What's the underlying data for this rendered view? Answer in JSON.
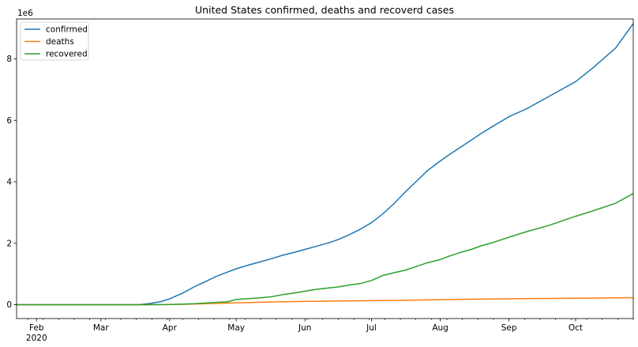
{
  "chart_data": {
    "type": "line",
    "title": "United States confirmed, deaths and recoverd cases",
    "xlabel": "",
    "ylabel": "",
    "y_scale_label": "1e6",
    "xlim_day": [
      0,
      278
    ],
    "ylim": [
      -450000,
      9300000
    ],
    "yticks": [
      0,
      2,
      4,
      6,
      8
    ],
    "x_tick_labels": [
      {
        "label": "Feb",
        "day": 9
      },
      {
        "label": "Mar",
        "day": 38
      },
      {
        "label": "Apr",
        "day": 69
      },
      {
        "label": "May",
        "day": 99
      },
      {
        "label": "Jun",
        "day": 130
      },
      {
        "label": "Jul",
        "day": 160
      },
      {
        "label": "Aug",
        "day": 191
      },
      {
        "label": "Sep",
        "day": 222
      },
      {
        "label": "Oct",
        "day": 252
      }
    ],
    "year_label": "2020",
    "minor_tick_step_days": 7,
    "start_date": "2020-01-22",
    "x_day": [
      0,
      55,
      60,
      65,
      69,
      75,
      80,
      85,
      90,
      95,
      99,
      105,
      110,
      115,
      120,
      125,
      130,
      135,
      140,
      145,
      150,
      155,
      160,
      165,
      170,
      175,
      180,
      185,
      191,
      195,
      200,
      205,
      210,
      215,
      222,
      230,
      240,
      252,
      260,
      270,
      278
    ],
    "series": [
      {
        "name": "confirmed",
        "color": "#1f77b4",
        "values": [
          0,
          0,
          40000,
          100000,
          190000,
          380000,
          580000,
          750000,
          920000,
          1060000,
          1170000,
          1300000,
          1400000,
          1500000,
          1610000,
          1700000,
          1800000,
          1900000,
          2000000,
          2120000,
          2280000,
          2460000,
          2670000,
          2950000,
          3280000,
          3650000,
          4000000,
          4350000,
          4680000,
          4880000,
          5120000,
          5360000,
          5600000,
          5820000,
          6120000,
          6380000,
          6780000,
          7260000,
          7720000,
          8350000,
          9150000
        ]
      },
      {
        "name": "deaths",
        "color": "#ff7f0e",
        "values": [
          0,
          0,
          1000,
          3000,
          6000,
          14000,
          23000,
          34000,
          46000,
          55000,
          63000,
          71000,
          80000,
          89000,
          97000,
          103000,
          107000,
          112000,
          117000,
          121000,
          125000,
          128000,
          131000,
          135000,
          140000,
          145000,
          152000,
          158000,
          164000,
          169000,
          174000,
          178000,
          182000,
          187000,
          193000,
          198000,
          204000,
          212000,
          217000,
          223000,
          228000
        ]
      },
      {
        "name": "recovered",
        "color": "#2ca02c",
        "values": [
          0,
          0,
          2000,
          4000,
          8000,
          20000,
          30000,
          55000,
          75000,
          95000,
          170000,
          200000,
          225000,
          260000,
          330000,
          380000,
          440000,
          500000,
          540000,
          580000,
          640000,
          690000,
          790000,
          950000,
          1040000,
          1120000,
          1240000,
          1360000,
          1470000,
          1580000,
          1700000,
          1800000,
          1930000,
          2030000,
          2200000,
          2380000,
          2580000,
          2880000,
          3060000,
          3300000,
          3620000
        ]
      }
    ]
  }
}
